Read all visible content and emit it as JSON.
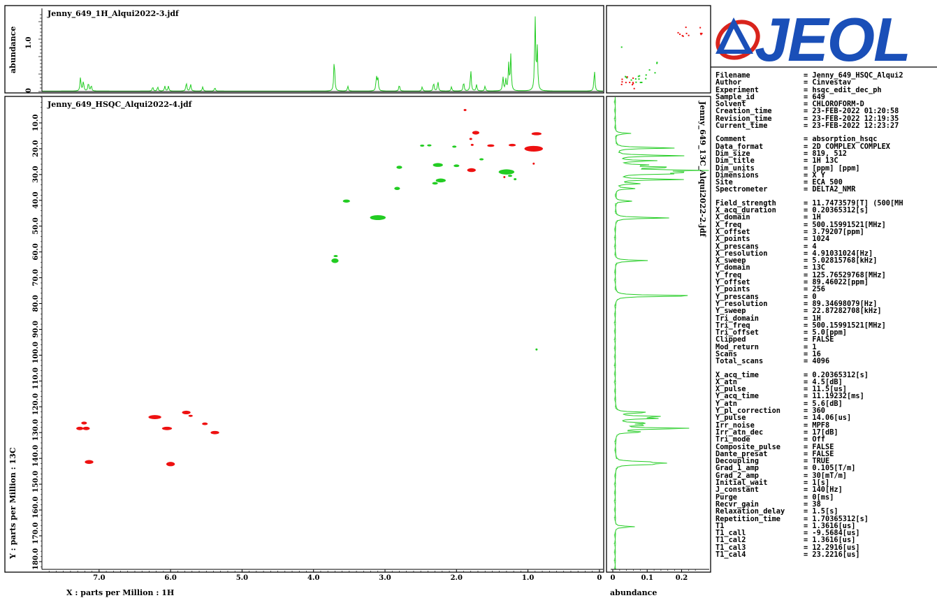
{
  "top_panel": {
    "title": "Jenny_649_1H_Alqui2022-3.jdf",
    "ylabel": "abundance",
    "yticks": [
      "1.0",
      "0"
    ]
  },
  "main_panel": {
    "title": "Jenny_649_HSQC_Alqui2022-4.jdf",
    "xlabel": "X : parts per Million : 1H",
    "ylabel": "Y : parts per Million : 13C"
  },
  "right_panel": {
    "title": "Jenny_649_13C_Alqui2022-2.jdf",
    "xlabel": "abundance",
    "xticks": [
      "0",
      "0.1",
      "0.2"
    ]
  },
  "logo": {
    "text": "JEOL",
    "color": "#1a4fb8",
    "accent": "#d9241c"
  },
  "colors": {
    "positive": "#22cc22",
    "negative": "#ee1111",
    "spectrum": "#22cc22"
  },
  "chart_data": {
    "type": "heatmap",
    "x_unit": "ppm (1H)",
    "y_unit": "ppm (13C)",
    "xlim": [
      7.8,
      -0.05
    ],
    "ylim": [
      0,
      183
    ],
    "xticks": [
      "7.0",
      "6.0",
      "5.0",
      "4.0",
      "3.0",
      "2.0",
      "1.0",
      "0"
    ],
    "yticks": [
      "10.0",
      "20.0",
      "30.0",
      "40.0",
      "50.0",
      "60.0",
      "70.0",
      "80.0",
      "90.0",
      "100.0",
      "110.0",
      "120.0",
      "130.0",
      "140.0",
      "150.0",
      "160.0",
      "170.0",
      "180.0"
    ],
    "cross_peaks": [
      {
        "x": 1.88,
        "y": 5.0,
        "phase": "negative",
        "w": 0.02,
        "h": 0.8
      },
      {
        "x": 1.73,
        "y": 13.8,
        "phase": "negative",
        "w": 0.05,
        "h": 1.4
      },
      {
        "x": 0.88,
        "y": 14.2,
        "phase": "negative",
        "w": 0.07,
        "h": 1.2
      },
      {
        "x": 1.8,
        "y": 16.2,
        "phase": "negative",
        "w": 0.02,
        "h": 0.6
      },
      {
        "x": 1.78,
        "y": 18.5,
        "phase": "negative",
        "w": 0.02,
        "h": 0.6
      },
      {
        "x": 2.48,
        "y": 18.8,
        "phase": "positive",
        "w": 0.03,
        "h": 0.8
      },
      {
        "x": 2.38,
        "y": 18.7,
        "phase": "positive",
        "w": 0.03,
        "h": 0.8
      },
      {
        "x": 2.03,
        "y": 19.2,
        "phase": "positive",
        "w": 0.03,
        "h": 0.8
      },
      {
        "x": 1.52,
        "y": 18.8,
        "phase": "negative",
        "w": 0.05,
        "h": 1.0
      },
      {
        "x": 1.22,
        "y": 18.6,
        "phase": "negative",
        "w": 0.05,
        "h": 1.0
      },
      {
        "x": 0.92,
        "y": 20.0,
        "phase": "negative",
        "w": 0.13,
        "h": 2.2
      },
      {
        "x": 0.92,
        "y": 25.8,
        "phase": "negative",
        "w": 0.01,
        "h": 0.6
      },
      {
        "x": 1.65,
        "y": 24.1,
        "phase": "positive",
        "w": 0.03,
        "h": 0.8
      },
      {
        "x": 2.26,
        "y": 26.3,
        "phase": "positive",
        "w": 0.07,
        "h": 1.5
      },
      {
        "x": 2.8,
        "y": 27.2,
        "phase": "positive",
        "w": 0.04,
        "h": 1.2
      },
      {
        "x": 2.0,
        "y": 26.6,
        "phase": "positive",
        "w": 0.04,
        "h": 1.0
      },
      {
        "x": 1.79,
        "y": 28.3,
        "phase": "negative",
        "w": 0.06,
        "h": 1.5
      },
      {
        "x": 1.3,
        "y": 29.0,
        "phase": "positive",
        "w": 0.11,
        "h": 2.0
      },
      {
        "x": 1.25,
        "y": 30.5,
        "phase": "positive",
        "w": 0.03,
        "h": 0.8
      },
      {
        "x": 1.18,
        "y": 31.8,
        "phase": "positive",
        "w": 0.02,
        "h": 0.6
      },
      {
        "x": 1.33,
        "y": 31.0,
        "phase": "negative",
        "w": 0.01,
        "h": 0.5
      },
      {
        "x": 2.22,
        "y": 32.3,
        "phase": "positive",
        "w": 0.07,
        "h": 1.5
      },
      {
        "x": 2.3,
        "y": 33.4,
        "phase": "positive",
        "w": 0.04,
        "h": 1.0
      },
      {
        "x": 2.83,
        "y": 35.4,
        "phase": "positive",
        "w": 0.04,
        "h": 1.2
      },
      {
        "x": 3.54,
        "y": 40.3,
        "phase": "positive",
        "w": 0.05,
        "h": 1.2
      },
      {
        "x": 3.1,
        "y": 46.7,
        "phase": "positive",
        "w": 0.11,
        "h": 1.9
      },
      {
        "x": 3.69,
        "y": 61.6,
        "phase": "positive",
        "w": 0.03,
        "h": 0.8
      },
      {
        "x": 3.7,
        "y": 63.4,
        "phase": "positive",
        "w": 0.05,
        "h": 1.8
      },
      {
        "x": 0.88,
        "y": 97.8,
        "phase": "positive",
        "w": 0.015,
        "h": 0.5
      },
      {
        "x": 7.21,
        "y": 126.3,
        "phase": "negative",
        "w": 0.04,
        "h": 1.1
      },
      {
        "x": 7.27,
        "y": 128.4,
        "phase": "negative",
        "w": 0.05,
        "h": 1.3
      },
      {
        "x": 7.18,
        "y": 128.4,
        "phase": "negative",
        "w": 0.05,
        "h": 1.3
      },
      {
        "x": 7.14,
        "y": 141.4,
        "phase": "negative",
        "w": 0.06,
        "h": 1.5
      },
      {
        "x": 6.22,
        "y": 124.0,
        "phase": "negative",
        "w": 0.09,
        "h": 1.6
      },
      {
        "x": 6.05,
        "y": 128.4,
        "phase": "negative",
        "w": 0.07,
        "h": 1.3
      },
      {
        "x": 6.0,
        "y": 142.2,
        "phase": "negative",
        "w": 0.06,
        "h": 1.7
      },
      {
        "x": 5.78,
        "y": 122.2,
        "phase": "negative",
        "w": 0.06,
        "h": 1.4
      },
      {
        "x": 5.72,
        "y": 123.5,
        "phase": "negative",
        "w": 0.03,
        "h": 0.8
      },
      {
        "x": 5.52,
        "y": 126.6,
        "phase": "negative",
        "w": 0.04,
        "h": 1.0
      },
      {
        "x": 5.38,
        "y": 130.0,
        "phase": "negative",
        "w": 0.06,
        "h": 1.3
      }
    ],
    "spectrum_1h_peaks": [
      {
        "x": 7.26,
        "h": 0.2
      },
      {
        "x": 7.22,
        "h": 0.14
      },
      {
        "x": 7.15,
        "h": 0.12
      },
      {
        "x": 7.11,
        "h": 0.08
      },
      {
        "x": 6.25,
        "h": 0.06
      },
      {
        "x": 6.18,
        "h": 0.06
      },
      {
        "x": 6.08,
        "h": 0.07
      },
      {
        "x": 6.03,
        "h": 0.07
      },
      {
        "x": 5.78,
        "h": 0.12
      },
      {
        "x": 5.72,
        "h": 0.1
      },
      {
        "x": 5.55,
        "h": 0.06
      },
      {
        "x": 5.38,
        "h": 0.05
      },
      {
        "x": 3.71,
        "h": 0.46
      },
      {
        "x": 3.52,
        "h": 0.07
      },
      {
        "x": 3.12,
        "h": 0.2
      },
      {
        "x": 3.1,
        "h": 0.18
      },
      {
        "x": 2.8,
        "h": 0.09
      },
      {
        "x": 2.48,
        "h": 0.06
      },
      {
        "x": 2.32,
        "h": 0.12
      },
      {
        "x": 2.26,
        "h": 0.14
      },
      {
        "x": 2.07,
        "h": 0.06
      },
      {
        "x": 1.9,
        "h": 0.13
      },
      {
        "x": 1.8,
        "h": 0.3
      },
      {
        "x": 1.72,
        "h": 0.09
      },
      {
        "x": 1.6,
        "h": 0.07
      },
      {
        "x": 1.35,
        "h": 0.2
      },
      {
        "x": 1.31,
        "h": 0.16
      },
      {
        "x": 1.27,
        "h": 0.37
      },
      {
        "x": 1.24,
        "h": 0.5
      },
      {
        "x": 0.9,
        "h": 1.05
      },
      {
        "x": 0.87,
        "h": 0.6
      },
      {
        "x": 0.07,
        "h": 0.3
      }
    ],
    "spectrum_13c_peaks": [
      {
        "y": 14.1,
        "h": 0.045
      },
      {
        "y": 19.7,
        "h": 0.18
      },
      {
        "y": 22.7,
        "h": 0.2
      },
      {
        "y": 24.7,
        "h": 0.12
      },
      {
        "y": 26.3,
        "h": 0.08
      },
      {
        "y": 27.2,
        "h": 0.16
      },
      {
        "y": 28.4,
        "h": 0.24
      },
      {
        "y": 29.1,
        "h": 0.18
      },
      {
        "y": 29.7,
        "h": 0.15
      },
      {
        "y": 31.9,
        "h": 0.2
      },
      {
        "y": 33.5,
        "h": 0.07
      },
      {
        "y": 35.4,
        "h": 0.06
      },
      {
        "y": 40.3,
        "h": 0.05
      },
      {
        "y": 46.8,
        "h": 0.16
      },
      {
        "y": 63.4,
        "h": 0.1
      },
      {
        "y": 77.0,
        "h": 0.26
      },
      {
        "y": 122.2,
        "h": 0.1
      },
      {
        "y": 123.8,
        "h": 0.13
      },
      {
        "y": 124.5,
        "h": 0.11
      },
      {
        "y": 126.3,
        "h": 0.09
      },
      {
        "y": 127.1,
        "h": 0.08
      },
      {
        "y": 128.4,
        "h": 0.23
      },
      {
        "y": 129.8,
        "h": 0.08
      },
      {
        "y": 141.3,
        "h": 0.07
      },
      {
        "y": 141.8,
        "h": 0.12
      },
      {
        "y": 142.3,
        "h": 0.1
      },
      {
        "y": 166.5,
        "h": 0.06
      }
    ],
    "spectrum_13c_xlim": [
      -0.02,
      0.26
    ]
  },
  "params": {
    "groups": [
      [
        [
          "Filename",
          "= Jenny_649_HSQC_Alqui2"
        ],
        [
          "Author",
          "= Cinvestav"
        ],
        [
          "Experiment",
          "= hsqc_edit_dec_ph"
        ],
        [
          "Sample_id",
          "= 649"
        ],
        [
          "Solvent",
          "= CHLOROFORM-D"
        ],
        [
          "Creation_time",
          "= 23-FEB-2022 01:20:58"
        ],
        [
          "Revision_time",
          "= 23-FEB-2022 12:19:35"
        ],
        [
          "Current_time",
          "= 23-FEB-2022 12:23:27"
        ]
      ],
      [
        [
          "Comment",
          "= absorption_hsqc"
        ],
        [
          "Data_format",
          "= 2D COMPLEX COMPLEX"
        ],
        [
          "Dim_size",
          "= 819, 512"
        ],
        [
          "Dim_title",
          "= 1H 13C"
        ],
        [
          "Dim_units",
          "= [ppm] [ppm]"
        ],
        [
          "Dimensions",
          "= X Y"
        ],
        [
          "Site",
          "= ECA 500"
        ],
        [
          "Spectrometer",
          "= DELTA2_NMR"
        ]
      ],
      [
        [
          "Field_strength",
          "= 11.7473579[T] (500[MH"
        ],
        [
          "X_acq_duration",
          "= 0.20365312[s]"
        ],
        [
          "X_domain",
          "= 1H"
        ],
        [
          "X_freq",
          "= 500.15991521[MHz]"
        ],
        [
          "X_offset",
          "= 3.79207[ppm]"
        ],
        [
          "X_points",
          "= 1024"
        ],
        [
          "X_prescans",
          "= 4"
        ],
        [
          "X_resolution",
          "= 4.91031024[Hz]"
        ],
        [
          "X_sweep",
          "= 5.02815768[kHz]"
        ],
        [
          "Y_domain",
          "= 13C"
        ],
        [
          "Y_freq",
          "= 125.76529768[MHz]"
        ],
        [
          "Y_offset",
          "= 89.46022[ppm]"
        ],
        [
          "Y_points",
          "= 256"
        ],
        [
          "Y_prescans",
          "= 0"
        ],
        [
          "Y_resolution",
          "= 89.34698079[Hz]"
        ],
        [
          "Y_sweep",
          "= 22.87282708[kHz]"
        ],
        [
          "Tri_domain",
          "= 1H"
        ],
        [
          "Tri_freq",
          "= 500.15991521[MHz]"
        ],
        [
          "Tri_offset",
          "= 5.0[ppm]"
        ],
        [
          "Clipped",
          "= FALSE"
        ],
        [
          "Mod_return",
          "= 1"
        ],
        [
          "Scans",
          "= 16"
        ],
        [
          "Total_scans",
          "= 4096"
        ]
      ],
      [
        [
          "X_acq_time",
          "= 0.20365312[s]"
        ],
        [
          "X_atn",
          "= 4.5[dB]"
        ],
        [
          "X_pulse",
          "= 11.5[us]"
        ],
        [
          "Y_acq_time",
          "= 11.19232[ms]"
        ],
        [
          "Y_atn",
          "= 5.6[dB]"
        ],
        [
          "Y_pl_correction",
          "= 360"
        ],
        [
          "Y_pulse",
          "= 14.06[us]"
        ],
        [
          "Irr_noise",
          "= MPF8"
        ],
        [
          "Irr_atn_dec",
          "= 17[dB]"
        ],
        [
          "Tri_mode",
          "= Off"
        ],
        [
          "Composite_pulse",
          "= FALSE"
        ],
        [
          "Dante_presat",
          "= FALSE"
        ],
        [
          "Decoupling",
          "= TRUE"
        ],
        [
          "Grad_1_amp",
          "= 0.105[T/m]"
        ],
        [
          "Grad_2_amp",
          "= 30[mT/m]"
        ],
        [
          "Initial_wait",
          "= 1[s]"
        ],
        [
          "J_constant",
          "= 140[Hz]"
        ],
        [
          "Purge",
          "= 0[ms]"
        ],
        [
          "Recvr_gain",
          "= 38"
        ],
        [
          "Relaxation_delay",
          "= 1.5[s]"
        ],
        [
          "Repetition_time",
          "= 1.70365312[s]"
        ],
        [
          "T1",
          "= 1.3616[us]"
        ],
        [
          "T1_call",
          "= -9.5684[us]"
        ],
        [
          "T1_cal2",
          "= 1.3616[us]"
        ],
        [
          "T1_cal3",
          "= 12.2916[us]"
        ],
        [
          "T1_cal4",
          "= 23.2216[us]"
        ]
      ]
    ]
  }
}
